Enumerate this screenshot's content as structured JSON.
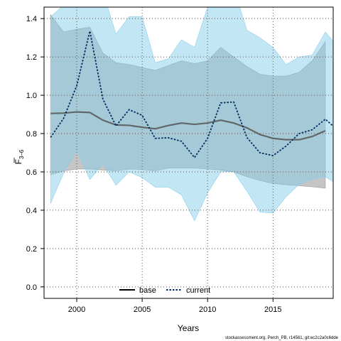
{
  "chart_data": {
    "type": "area",
    "xlabel": "Years",
    "ylabel_main": "F",
    "ylabel_sub": "3–6",
    "xlim": [
      1997.5,
      2019.6
    ],
    "ylim": [
      -0.06,
      1.46
    ],
    "x_ticks": [
      2000,
      2005,
      2010,
      2015
    ],
    "x_tick_labels": [
      "2000",
      "2005",
      "2010",
      "2015"
    ],
    "y_ticks": [
      0.0,
      0.2,
      0.4,
      0.6,
      0.8,
      1.0,
      1.2,
      1.4
    ],
    "y_tick_labels": [
      "0.0",
      "0.2",
      "0.4",
      "0.6",
      "0.8",
      "1.0",
      "1.2",
      "1.4"
    ],
    "grid": true,
    "legend_position": "bottom-left",
    "series": [
      {
        "name": "base",
        "style": "solid",
        "color": "#555555",
        "band_color": "#8c8c8c",
        "x": [
          1998,
          1999,
          2000,
          2001,
          2002,
          2003,
          2004,
          2005,
          2006,
          2007,
          2008,
          2009,
          2010,
          2011,
          2012,
          2013,
          2014,
          2015,
          2016,
          2017,
          2018,
          2019
        ],
        "y": [
          0.905,
          0.907,
          0.913,
          0.91,
          0.87,
          0.845,
          0.843,
          0.833,
          0.825,
          0.842,
          0.855,
          0.848,
          0.855,
          0.87,
          0.855,
          0.83,
          0.795,
          0.775,
          0.768,
          0.768,
          0.785,
          0.815
        ],
        "lower": [
          0.585,
          0.605,
          0.615,
          0.615,
          0.61,
          0.605,
          0.615,
          0.612,
          0.605,
          0.62,
          0.62,
          0.62,
          0.615,
          0.61,
          0.6,
          0.575,
          0.555,
          0.54,
          0.533,
          0.528,
          0.522,
          0.515
        ],
        "upper": [
          1.42,
          1.33,
          1.345,
          1.355,
          1.22,
          1.17,
          1.16,
          1.145,
          1.13,
          1.155,
          1.18,
          1.165,
          1.18,
          1.25,
          1.2,
          1.15,
          1.11,
          1.1,
          1.1,
          1.12,
          1.18,
          1.28
        ]
      },
      {
        "name": "current",
        "style": "dotted",
        "color": "#002f5f",
        "band_color": "#87ceeb",
        "x": [
          1998,
          1999,
          2000,
          2001,
          2002,
          2003,
          2004,
          2005,
          2006,
          2007,
          2008,
          2009,
          2010,
          2011,
          2012,
          2013,
          2014,
          2015,
          2016,
          2017,
          2018,
          2019,
          2020
        ],
        "y": [
          0.78,
          0.88,
          1.05,
          1.335,
          0.98,
          0.84,
          0.925,
          0.895,
          0.775,
          0.778,
          0.76,
          0.675,
          0.775,
          0.96,
          0.965,
          0.78,
          0.7,
          0.685,
          0.735,
          0.8,
          0.82,
          0.875,
          0.815
        ],
        "lower": [
          0.435,
          0.595,
          0.71,
          0.56,
          0.64,
          0.53,
          0.6,
          0.57,
          0.52,
          0.52,
          0.48,
          0.345,
          0.49,
          0.6,
          0.6,
          0.5,
          0.39,
          0.385,
          0.47,
          0.535,
          0.56,
          0.575,
          0.53
        ],
        "upper": [
          1.41,
          1.47,
          1.58,
          1.58,
          1.54,
          1.32,
          1.41,
          1.41,
          1.17,
          1.19,
          1.29,
          1.25,
          1.46,
          1.56,
          1.56,
          1.34,
          1.3,
          1.25,
          1.16,
          1.2,
          1.21,
          1.33,
          1.25
        ]
      }
    ]
  },
  "footer": "stockassessment.org, Perch_PB, r14561, git:ec2c2a0c6dde"
}
